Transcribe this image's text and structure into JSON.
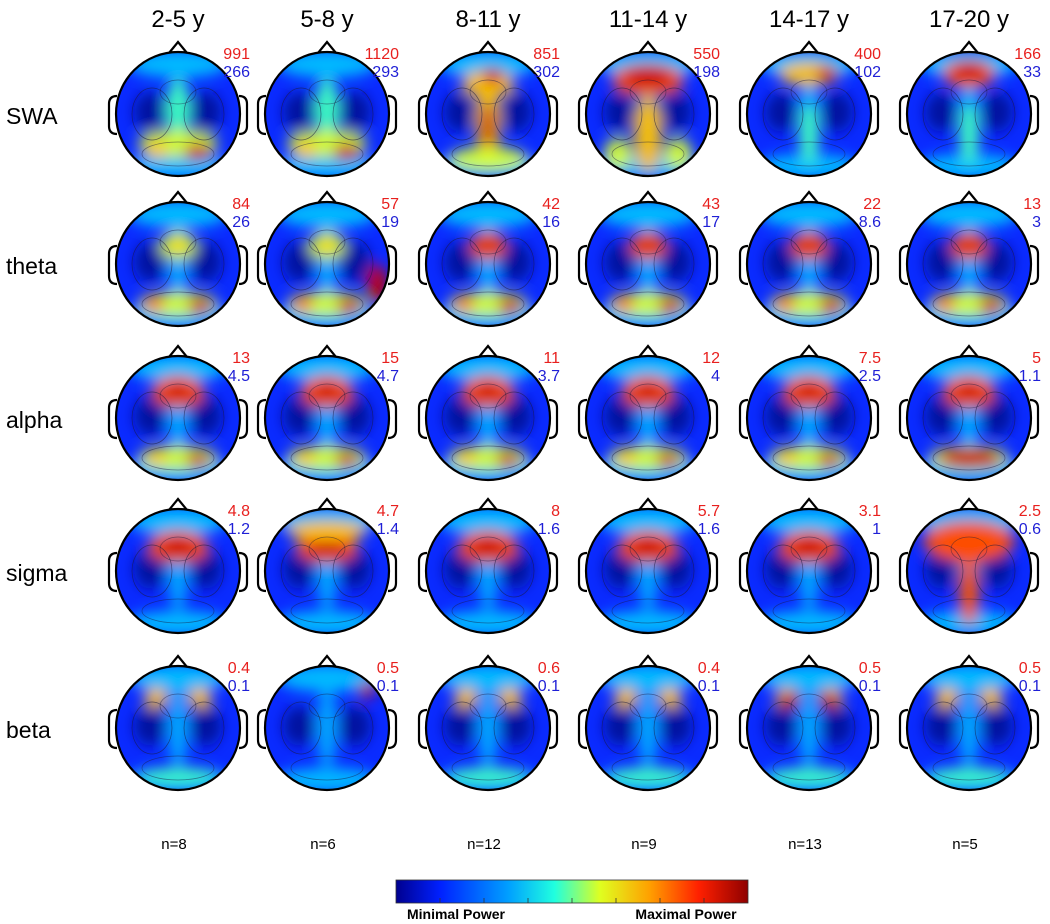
{
  "figure": {
    "columns": [
      {
        "label": "2-5 y",
        "n": "n=8"
      },
      {
        "label": "5-8 y",
        "n": "n=6"
      },
      {
        "label": "8-11 y",
        "n": "n=12"
      },
      {
        "label": "11-14 y",
        "n": "n=9"
      },
      {
        "label": "14-17 y",
        "n": "n=13"
      },
      {
        "label": "17-20 y",
        "n": "n=5"
      }
    ],
    "rows": [
      {
        "label": "SWA",
        "max": [
          "991",
          "1120",
          "851",
          "550",
          "400",
          "166"
        ],
        "min": [
          "266",
          "293",
          "302",
          "198",
          "102",
          "33"
        ]
      },
      {
        "label": "theta",
        "max": [
          "84",
          "57",
          "42",
          "43",
          "22",
          "13"
        ],
        "min": [
          "26",
          "19",
          "16",
          "17",
          "8.6",
          "3"
        ]
      },
      {
        "label": "alpha",
        "max": [
          "13",
          "15",
          "11",
          "12",
          "7.5",
          "5"
        ],
        "min": [
          "4.5",
          "4.7",
          "3.7",
          "4",
          "2.5",
          "1.1"
        ]
      },
      {
        "label": "sigma",
        "max": [
          "4.8",
          "4.7",
          "8",
          "5.7",
          "3.1",
          "2.5"
        ],
        "min": [
          "1.2",
          "1.4",
          "1.6",
          "1.6",
          "1",
          "0.6"
        ]
      },
      {
        "label": "beta",
        "max": [
          "0.4",
          "0.5",
          "0.6",
          "0.4",
          "0.5",
          "0.5"
        ],
        "min": [
          "0.1",
          "0.1",
          "0.1",
          "0.1",
          "0.1",
          "0.1"
        ]
      }
    ],
    "colorbar": {
      "min_label": "Minimal Power",
      "max_label": "Maximal Power",
      "stops": [
        "#00008f",
        "#0020ff",
        "#00a0ff",
        "#20ffdf",
        "#dfff20",
        "#ffa000",
        "#ff2000",
        "#8f0000"
      ]
    },
    "colors": {
      "max_value": "#e8201e",
      "min_value": "#1f1fd6",
      "head_outline": "#000000"
    }
  }
}
